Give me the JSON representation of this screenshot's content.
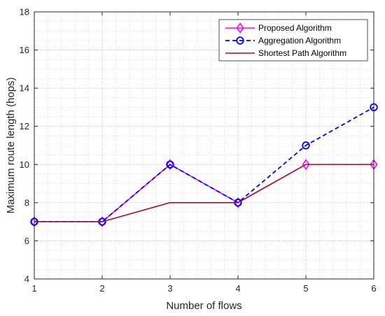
{
  "chart_data": {
    "type": "line",
    "xlabel": "Number of flows",
    "ylabel": "Maximum route length (hops)",
    "xlim": [
      1,
      6
    ],
    "ylim": [
      4,
      18
    ],
    "xticks": [
      1,
      2,
      3,
      4,
      5,
      6
    ],
    "yticks": [
      4,
      6,
      8,
      10,
      12,
      14,
      16,
      18
    ],
    "grid": true,
    "minor_grid": true,
    "legend_position": "top-right",
    "x": [
      1,
      2,
      3,
      4,
      5,
      6
    ],
    "series": [
      {
        "name": "Proposed Algorithm",
        "values": [
          7,
          7,
          10,
          8,
          10,
          10
        ],
        "color": "#ff00ff",
        "line_style": "solid",
        "marker": "diamond"
      },
      {
        "name": "Aggregation Algorithm",
        "values": [
          7,
          7,
          10,
          8,
          11,
          13
        ],
        "color": "#0000ff",
        "line_style": "dashed",
        "marker": "circle"
      },
      {
        "name": "Shortest Path Algorithm",
        "values": [
          7,
          7,
          8,
          8,
          10,
          10
        ],
        "color": "#a2142f",
        "line_style": "solid",
        "marker": "none"
      }
    ]
  }
}
